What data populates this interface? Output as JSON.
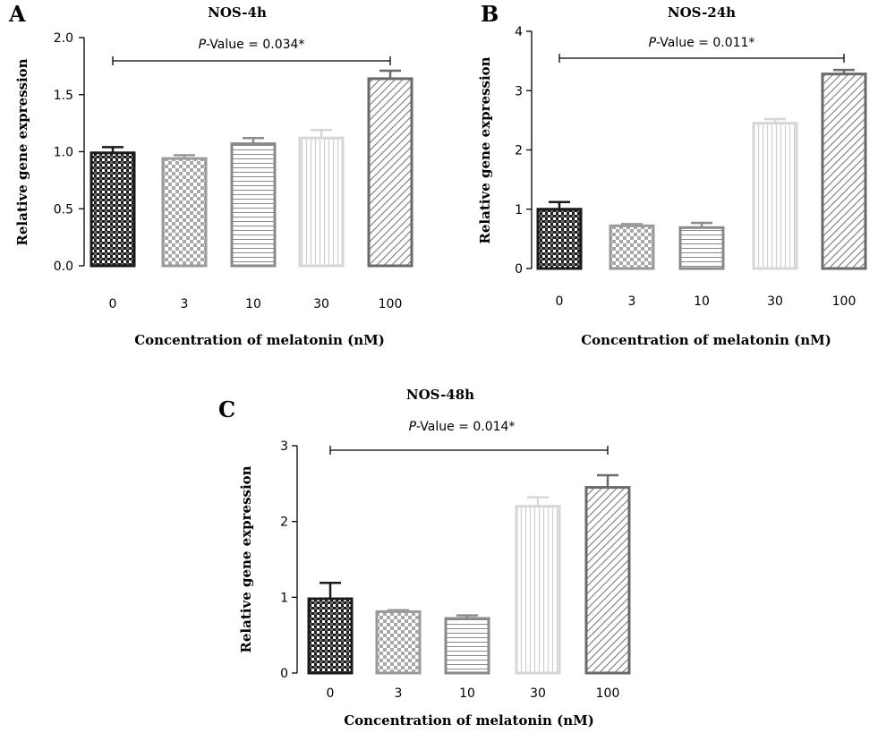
{
  "figure": {
    "x_axis_label": "Concentration of melatonin (nM)",
    "y_axis_label": "Relative gene expression"
  },
  "chart_data": [
    {
      "type": "bar",
      "panel": "A",
      "title": "NOS-4h",
      "xlabel": "Concentration of melatonin (nM)",
      "ylabel": "Relative gene expression",
      "categories": [
        "0",
        "3",
        "10",
        "30",
        "100"
      ],
      "values": [
        0.99,
        0.94,
        1.07,
        1.12,
        1.64
      ],
      "errors": [
        0.05,
        0.03,
        0.05,
        0.07,
        0.07
      ],
      "ylim": [
        0,
        2.0
      ],
      "yticks": [
        "0.0",
        "0.5",
        "1.0",
        "1.5",
        "2.0"
      ],
      "annotation": {
        "p_prefix": "P",
        "p_text": "-Value = 0.034*",
        "from": "0",
        "to": "100"
      }
    },
    {
      "type": "bar",
      "panel": "B",
      "title": "NOS-24h",
      "xlabel": "Concentration of melatonin (nM)",
      "ylabel": "Relative gene expression",
      "categories": [
        "0",
        "3",
        "10",
        "30",
        "100"
      ],
      "values": [
        1.0,
        0.72,
        0.69,
        2.45,
        3.28
      ],
      "errors": [
        0.12,
        0.03,
        0.08,
        0.07,
        0.07
      ],
      "ylim": [
        0,
        4
      ],
      "yticks": [
        "0",
        "1",
        "2",
        "3",
        "4"
      ],
      "annotation": {
        "p_prefix": "P",
        "p_text": "-Value = 0.011*",
        "from": "0",
        "to": "100"
      }
    },
    {
      "type": "bar",
      "panel": "C",
      "title": "NOS-48h",
      "xlabel": "Concentration of melatonin (nM)",
      "ylabel": "Relative gene expression",
      "categories": [
        "0",
        "3",
        "10",
        "30",
        "100"
      ],
      "values": [
        0.98,
        0.81,
        0.72,
        2.2,
        2.45
      ],
      "errors": [
        0.21,
        0.02,
        0.04,
        0.12,
        0.16
      ],
      "ylim": [
        0,
        3
      ],
      "yticks": [
        "0",
        "1",
        "2",
        "3"
      ],
      "annotation": {
        "p_prefix": "P",
        "p_text": "-Value = 0.014*",
        "from": "0",
        "to": "100"
      }
    }
  ],
  "bar_styles": [
    {
      "category": "0",
      "pattern": "checker-dense",
      "stroke": "#1a1a1a",
      "ink": "#1a1a1a"
    },
    {
      "category": "3",
      "pattern": "checker-light",
      "stroke": "#9a9a9a",
      "ink": "#a8a8a8"
    },
    {
      "category": "10",
      "pattern": "horizontal-lines",
      "stroke": "#8a8a8a",
      "ink": "#8a8a8a"
    },
    {
      "category": "30",
      "pattern": "vertical-lines",
      "stroke": "#d6d6d6",
      "ink": "#d0d0d0"
    },
    {
      "category": "100",
      "pattern": "diagonal-lines",
      "stroke": "#6a6a6a",
      "ink": "#7a7a7a"
    }
  ]
}
